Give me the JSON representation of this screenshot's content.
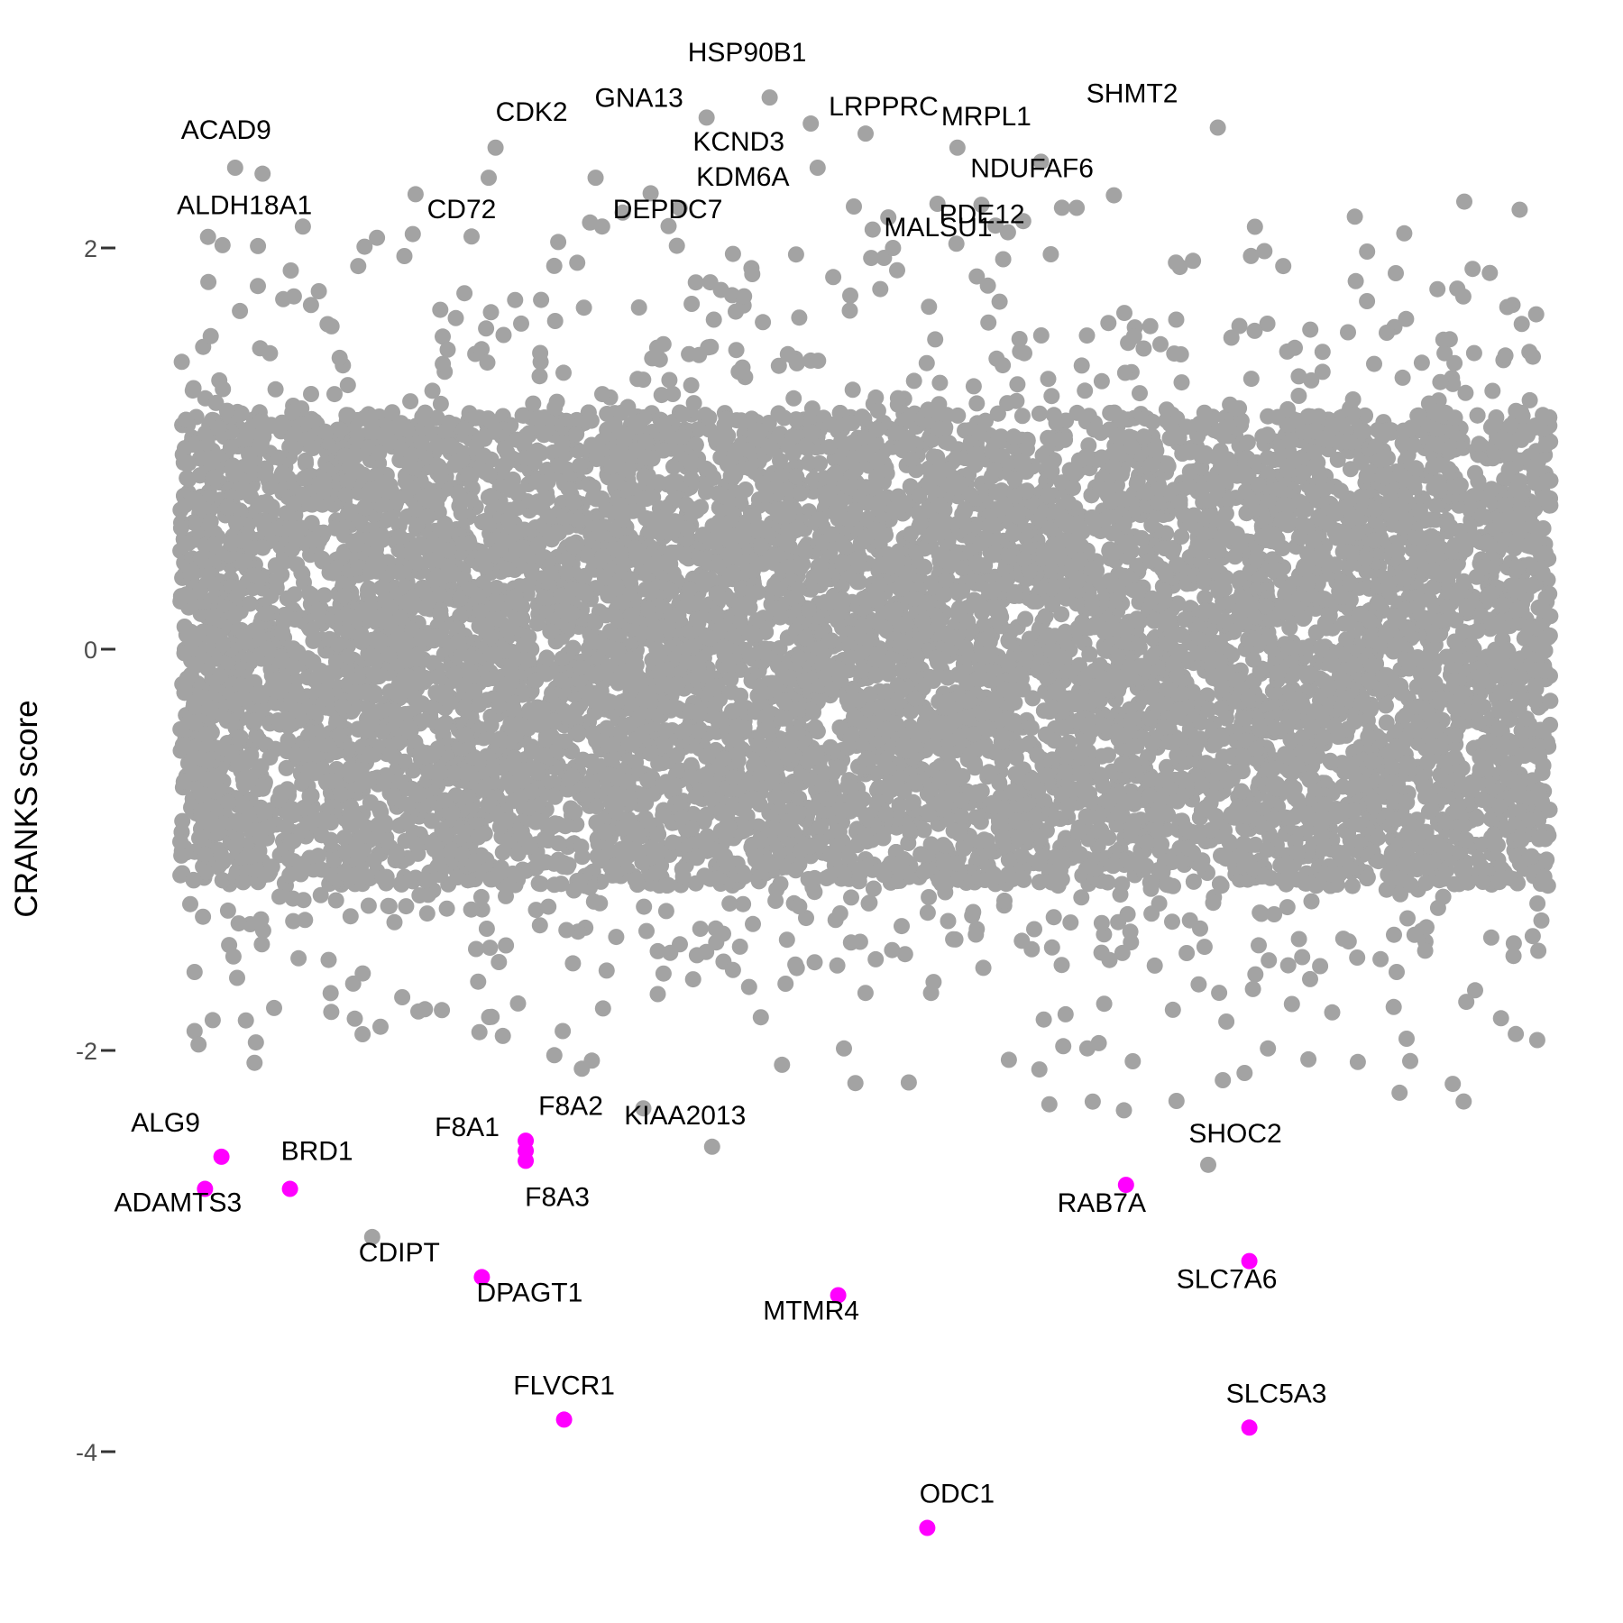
{
  "chart_data": {
    "type": "scatter",
    "ylabel": "CRANKS score",
    "xlabel": "",
    "ylim": [
      -4.85,
      3.05
    ],
    "xlim": [
      0,
      1
    ],
    "yticks": [
      {
        "value": 2,
        "label": "2"
      },
      {
        "value": 0,
        "label": "0"
      },
      {
        "value": -2,
        "label": "-2"
      },
      {
        "value": -4,
        "label": "-4"
      }
    ],
    "grid": false,
    "legend": "none",
    "colors": {
      "background_points": "#a3a3a3",
      "highlighted_points": "#ff00ff"
    },
    "background_points_note": "Thousands of gray points form a dense band between about -1.2 and 1.2; scattered outliers extend to about 2.7 and -2.9.",
    "top_labeled_points": [
      {
        "gene": "ACAD9",
        "x": 0.04,
        "y": 2.4
      },
      {
        "gene": "ALDH18A1",
        "x": 0.06,
        "y": 2.37
      },
      {
        "gene": "CDK2",
        "x": 0.23,
        "y": 2.5
      },
      {
        "gene": "CD72",
        "x": 0.225,
        "y": 2.35
      },
      {
        "gene": "DEPDC7",
        "x": 0.303,
        "y": 2.35
      },
      {
        "gene": "GNA13",
        "x": 0.384,
        "y": 2.65
      },
      {
        "gene": "HSP90B1",
        "x": 0.43,
        "y": 2.75
      },
      {
        "gene": "KCND3",
        "x": 0.46,
        "y": 2.62
      },
      {
        "gene": "KDM6A",
        "x": 0.465,
        "y": 2.4
      },
      {
        "gene": "LRPPRC",
        "x": 0.5,
        "y": 2.57
      },
      {
        "gene": "MALSU1",
        "x": 0.52,
        "y": 2.0
      },
      {
        "gene": "MRPL1",
        "x": 0.567,
        "y": 2.5
      },
      {
        "gene": "NDUFAF6",
        "x": 0.628,
        "y": 2.43
      },
      {
        "gene": "PDE12",
        "x": 0.654,
        "y": 2.2
      },
      {
        "gene": "SHMT2",
        "x": 0.757,
        "y": 2.6
      }
    ],
    "bottom_labeled_points": [
      {
        "gene": "ALG9",
        "x": 0.03,
        "y": -2.53,
        "highlight": true
      },
      {
        "gene": "ADAMTS3",
        "x": 0.018,
        "y": -2.69,
        "highlight": true
      },
      {
        "gene": "BRD1",
        "x": 0.08,
        "y": -2.69,
        "highlight": true
      },
      {
        "gene": "CDIPT",
        "x": 0.14,
        "y": -2.93,
        "highlight": false
      },
      {
        "gene": "DPAGT1",
        "x": 0.22,
        "y": -3.13,
        "highlight": true
      },
      {
        "gene": "F8A1",
        "x": 0.252,
        "y": -2.45,
        "highlight": true
      },
      {
        "gene": "F8A2",
        "x": 0.252,
        "y": -2.5,
        "highlight": true
      },
      {
        "gene": "F8A3",
        "x": 0.252,
        "y": -2.55,
        "highlight": true
      },
      {
        "gene": "FLVCR1",
        "x": 0.28,
        "y": -3.84,
        "highlight": true
      },
      {
        "gene": "KIAA2013",
        "x": 0.388,
        "y": -2.48,
        "highlight": false
      },
      {
        "gene": "MTMR4",
        "x": 0.48,
        "y": -3.22,
        "highlight": true
      },
      {
        "gene": "ODC1",
        "x": 0.545,
        "y": -4.38,
        "highlight": true
      },
      {
        "gene": "RAB7A",
        "x": 0.69,
        "y": -2.67,
        "highlight": true
      },
      {
        "gene": "SHOC2",
        "x": 0.75,
        "y": -2.57,
        "highlight": false
      },
      {
        "gene": "SLC7A6",
        "x": 0.78,
        "y": -3.05,
        "highlight": true
      },
      {
        "gene": "SLC5A3",
        "x": 0.78,
        "y": -3.88,
        "highlight": true
      }
    ]
  },
  "label_positions_note": ""
}
